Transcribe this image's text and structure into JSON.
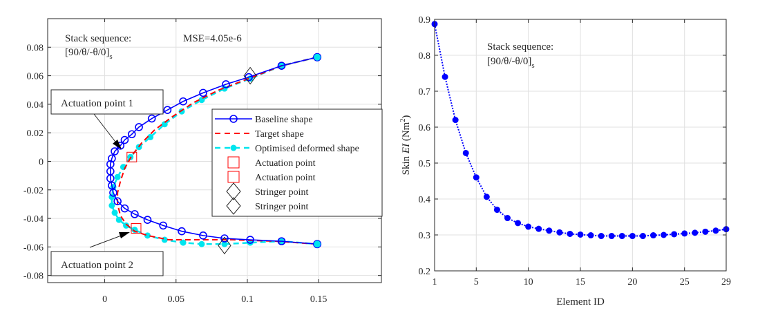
{
  "chart_data": [
    {
      "type": "line",
      "title": "",
      "xlabel": "",
      "ylabel": "",
      "xlim": [
        -0.04,
        0.194
      ],
      "ylim": [
        -0.085,
        0.1
      ],
      "xticks": [
        0,
        0.05,
        0.1,
        0.15
      ],
      "xtick_labels": [
        "0",
        "0.05",
        "0.1",
        "0.15"
      ],
      "yticks": [
        -0.08,
        -0.06,
        -0.04,
        -0.02,
        0,
        0.02,
        0.04,
        0.06,
        0.08
      ],
      "ytick_labels": [
        "-0.08",
        "-0.06",
        "-0.04",
        "-0.02",
        "0",
        "0.02",
        "0.04",
        "0.06",
        "0.08"
      ],
      "grid": true,
      "legend_position": "center-right",
      "annotations": {
        "stack_label": "Stack sequence:",
        "stack_seq_main": "[90/θ/-θ/0]",
        "stack_seq_sub": "s",
        "mse": "MSE=4.05e-6",
        "actuation_1": "Actuation point 1",
        "actuation_2": "Actuation point 2"
      },
      "series": [
        {
          "name": "Baseline shape",
          "color": "#0000ff",
          "style": "solid-circle-open",
          "x": [
            0.149,
            0.124,
            0.101,
            0.085,
            0.069,
            0.055,
            0.044,
            0.033,
            0.024,
            0.019,
            0.014,
            0.011,
            0.007,
            0.005,
            0.004,
            0.004,
            0.004,
            0.005,
            0.006,
            0.009,
            0.014,
            0.021,
            0.03,
            0.041,
            0.054,
            0.069,
            0.084,
            0.102,
            0.124,
            0.149
          ],
          "y": [
            0.073,
            0.067,
            0.059,
            0.054,
            0.048,
            0.042,
            0.036,
            0.03,
            0.024,
            0.019,
            0.015,
            0.011,
            0.007,
            0.002,
            -0.002,
            -0.007,
            -0.012,
            -0.017,
            -0.022,
            -0.028,
            -0.033,
            -0.037,
            -0.041,
            -0.045,
            -0.049,
            -0.052,
            -0.054,
            -0.055,
            -0.056,
            -0.058
          ]
        },
        {
          "name": "Target shape",
          "color": "#ff0000",
          "style": "dashed",
          "x": [
            0.149,
            0.124,
            0.101,
            0.08,
            0.062,
            0.047,
            0.035,
            0.026,
            0.019,
            0.014,
            0.011,
            0.009,
            0.009,
            0.011,
            0.015,
            0.021,
            0.03,
            0.045,
            0.065,
            0.09,
            0.12,
            0.149
          ],
          "y": [
            0.073,
            0.067,
            0.058,
            0.05,
            0.041,
            0.031,
            0.022,
            0.013,
            0.004,
            -0.005,
            -0.014,
            -0.022,
            -0.03,
            -0.038,
            -0.044,
            -0.049,
            -0.052,
            -0.055,
            -0.055,
            -0.055,
            -0.056,
            -0.058
          ]
        },
        {
          "name": "Optimised deformed shape",
          "color": "#00e5ee",
          "style": "dashed-circle-filled",
          "x": [
            0.149,
            0.124,
            0.102,
            0.084,
            0.068,
            0.054,
            0.042,
            0.032,
            0.024,
            0.018,
            0.013,
            0.009,
            0.006,
            0.005,
            0.005,
            0.007,
            0.01,
            0.015,
            0.021,
            0.03,
            0.042,
            0.055,
            0.068,
            0.084,
            0.102,
            0.124,
            0.149
          ],
          "y": [
            0.073,
            0.067,
            0.058,
            0.051,
            0.043,
            0.035,
            0.026,
            0.017,
            0.01,
            0.003,
            -0.004,
            -0.011,
            -0.018,
            -0.025,
            -0.031,
            -0.036,
            -0.041,
            -0.045,
            -0.048,
            -0.052,
            -0.055,
            -0.057,
            -0.058,
            -0.058,
            -0.057,
            -0.056,
            -0.058
          ]
        }
      ],
      "markers": [
        {
          "name": "Actuation point",
          "shape": "square",
          "color": "#ff0000",
          "x": 0.019,
          "y": 0.003
        },
        {
          "name": "Actuation point",
          "shape": "square",
          "color": "#ff0000",
          "x": 0.022,
          "y": -0.047
        },
        {
          "name": "Stringer point",
          "shape": "diamond",
          "color": "#000000",
          "x": 0.102,
          "y": 0.06
        },
        {
          "name": "Stringer point",
          "shape": "diamond",
          "color": "#000000",
          "x": 0.084,
          "y": -0.059
        }
      ],
      "legend": [
        {
          "label": "Baseline shape",
          "kind": "baseline"
        },
        {
          "label": "Target shape",
          "kind": "target"
        },
        {
          "label": "Optimised deformed shape",
          "kind": "optimised"
        },
        {
          "label": "Actuation point",
          "kind": "square"
        },
        {
          "label": "Actuation point",
          "kind": "square"
        },
        {
          "label": "Stringer point",
          "kind": "diamond"
        },
        {
          "label": "Stringer point",
          "kind": "diamond"
        }
      ]
    },
    {
      "type": "line",
      "title": "",
      "xlabel": "Element ID",
      "ylabel_prefix": "Skin ",
      "ylabel_italic": "EI",
      "ylabel_unit": " (Nm",
      "ylabel_sup": "2",
      "ylabel_close": ")",
      "xlim": [
        1,
        29
      ],
      "ylim": [
        0.2,
        0.9
      ],
      "xticks": [
        1,
        5,
        10,
        15,
        20,
        25,
        29
      ],
      "xtick_labels": [
        "1",
        "5",
        "10",
        "15",
        "20",
        "25",
        "29"
      ],
      "yticks": [
        0.2,
        0.3,
        0.4,
        0.5,
        0.6,
        0.7,
        0.8,
        0.9
      ],
      "ytick_labels": [
        "0.2",
        "0.3",
        "0.4",
        "0.5",
        "0.6",
        "0.7",
        "0.8",
        "0.9"
      ],
      "grid": true,
      "annotations": {
        "stack_label": "Stack sequence:",
        "stack_seq_main": "[90/θ/-θ/0]",
        "stack_seq_sub": "s"
      },
      "series": [
        {
          "name": "Skin EI",
          "color": "#0000ff",
          "style": "dotted-circle-filled",
          "x": [
            1,
            2,
            3,
            4,
            5,
            6,
            7,
            8,
            9,
            10,
            11,
            12,
            13,
            14,
            15,
            16,
            17,
            18,
            19,
            20,
            21,
            22,
            23,
            24,
            25,
            26,
            27,
            28,
            29
          ],
          "y": [
            0.887,
            0.74,
            0.62,
            0.528,
            0.46,
            0.406,
            0.37,
            0.347,
            0.333,
            0.323,
            0.317,
            0.312,
            0.307,
            0.303,
            0.301,
            0.299,
            0.297,
            0.297,
            0.297,
            0.297,
            0.297,
            0.299,
            0.3,
            0.302,
            0.304,
            0.306,
            0.309,
            0.312,
            0.316
          ]
        }
      ]
    }
  ]
}
